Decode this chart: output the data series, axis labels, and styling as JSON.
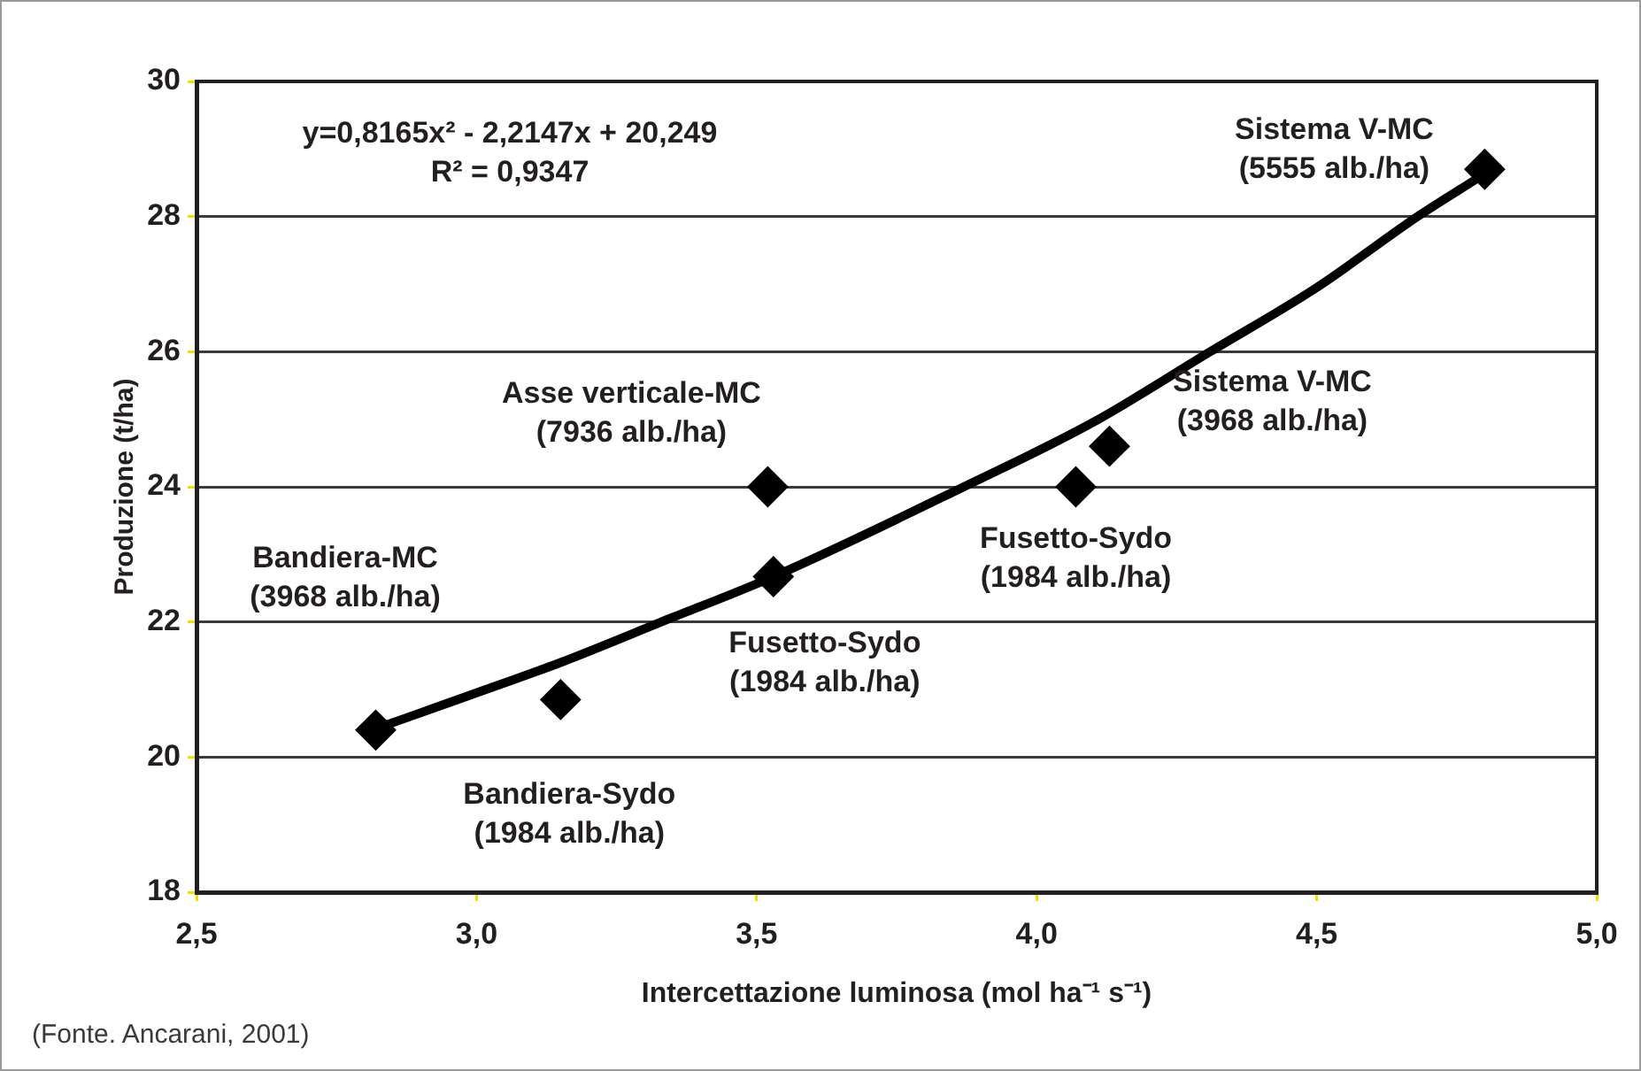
{
  "chart_data": {
    "type": "scatter",
    "xlabel": "Intercettazione luminosa (mol ha⁻¹ s⁻¹)",
    "ylabel": "Produzione (t/ha)",
    "xlim": [
      2.5,
      5.0
    ],
    "xticks": [
      {
        "value": 2.5,
        "label": "2,5"
      },
      {
        "value": 3,
        "label": "3,0"
      },
      {
        "value": 3.5,
        "label": "3,5"
      },
      {
        "value": 4,
        "label": "4,0"
      },
      {
        "value": 4.5,
        "label": "4,5"
      },
      {
        "value": 5,
        "label": "5,0"
      }
    ],
    "ylim": [
      18,
      30
    ],
    "yticks": [
      18,
      20,
      22,
      24,
      26,
      28,
      30
    ],
    "grid": "y",
    "legend": false,
    "marker": "diamond",
    "series": [
      {
        "color": "#000000",
        "x": [
          2.82,
          3.15,
          3.53,
          3.52,
          4.07,
          4.13,
          4.8
        ],
        "values": [
          20.4,
          20.85,
          22.67,
          24.0,
          24.0,
          24.6,
          28.7
        ]
      },
      {
        "type": "line",
        "color": "#000000",
        "marker": "none",
        "x": [
          2.82,
          3.0,
          3.15,
          3.33,
          3.53,
          3.87,
          4.1,
          4.31,
          4.5,
          4.68,
          4.79
        ],
        "values": [
          20.42,
          20.95,
          21.4,
          22.0,
          22.67,
          24.0,
          24.95,
          26.0,
          26.95,
          28.0,
          28.58
        ]
      }
    ],
    "annotations": [
      {
        "text": "Sistema V-MC\n(5555 alb./ha)",
        "x": 4.8,
        "y": 28.7
      },
      {
        "text": "Sistema V-MC\n(3968 alb./ha)",
        "x": 4.13,
        "y": 24.6
      },
      {
        "text": "Fusetto-Sydo\n(1984 alb./ha)",
        "x": 4.07,
        "y": 24.0
      },
      {
        "text": "Asse verticale-MC\n(7936 alb./ha)",
        "x": 3.52,
        "y": 24.0
      },
      {
        "text": "Fusetto-Sydo\n(1984 alb./ha)",
        "x": 3.53,
        "y": 22.67
      },
      {
        "text": "Bandiera-Sydo\n(1984 alb./ha)",
        "x": 3.15,
        "y": 20.85
      },
      "Bandiera-MC\n(3968 alb./ha)",
      "y=0,8165x² - 2,2147x + 20,249\nR² = 0,9347",
      "(Fonte. Ancarani, 2001)"
    ]
  }
}
